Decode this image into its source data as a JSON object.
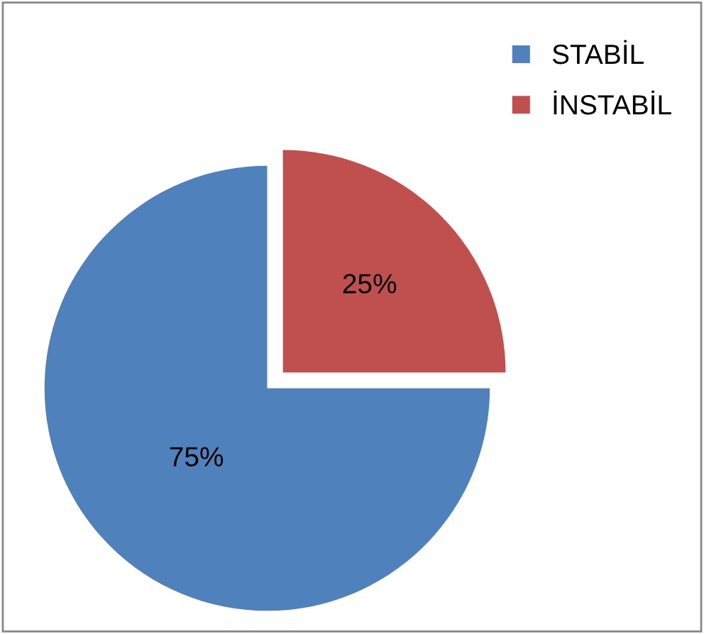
{
  "chart_data": {
    "type": "pie",
    "categories": [
      "STABİL",
      "İNSTABİL"
    ],
    "values": [
      75,
      25
    ],
    "colors": [
      "#4f81bd",
      "#c0504d"
    ],
    "value_labels": [
      "75%",
      "25%"
    ],
    "legend": "top right"
  }
}
